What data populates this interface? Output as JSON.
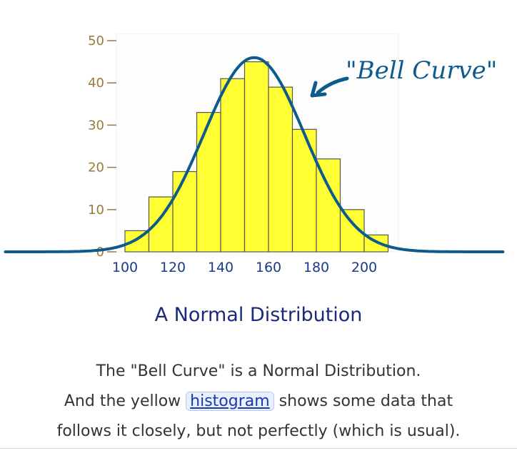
{
  "chart_data": {
    "type": "bar",
    "categories": [
      "100",
      "110",
      "120",
      "130",
      "140",
      "150",
      "160",
      "170",
      "180",
      "190",
      "200"
    ],
    "bin_start": [
      100,
      110,
      120,
      130,
      140,
      150,
      160,
      170,
      180,
      190,
      200
    ],
    "bin_end": [
      110,
      120,
      130,
      140,
      150,
      160,
      170,
      180,
      190,
      200,
      210
    ],
    "values": [
      5,
      13,
      19,
      33,
      41,
      45,
      39,
      29,
      22,
      10,
      4
    ],
    "xticks": [
      100,
      120,
      140,
      160,
      180,
      200
    ],
    "yticks": [
      0,
      10,
      20,
      30,
      40,
      50
    ],
    "xlim": [
      100,
      210
    ],
    "ylim": [
      0,
      50
    ],
    "curve": {
      "mean": 154,
      "sd": 21,
      "peak": 46,
      "x_range": [
        50,
        258
      ]
    },
    "annotation": "\"Bell Curve\"",
    "grid": false,
    "colors": {
      "bar_fill": "#ffff33",
      "bar_stroke": "#555555",
      "curve": "#0d5a8c",
      "tick_label": "#9a7a3a",
      "x_tick_label": "#1a3a8a",
      "plot_bg": "#fdfdfd"
    }
  },
  "caption": "A Normal Distribution",
  "description": {
    "line1": "The \"Bell Curve\" is a Normal Distribution.",
    "line2_before": "And the yellow ",
    "link": "histogram",
    "line2_after": " shows some data that",
    "line3": "follows it closely, but not perfectly (which is usual)."
  }
}
